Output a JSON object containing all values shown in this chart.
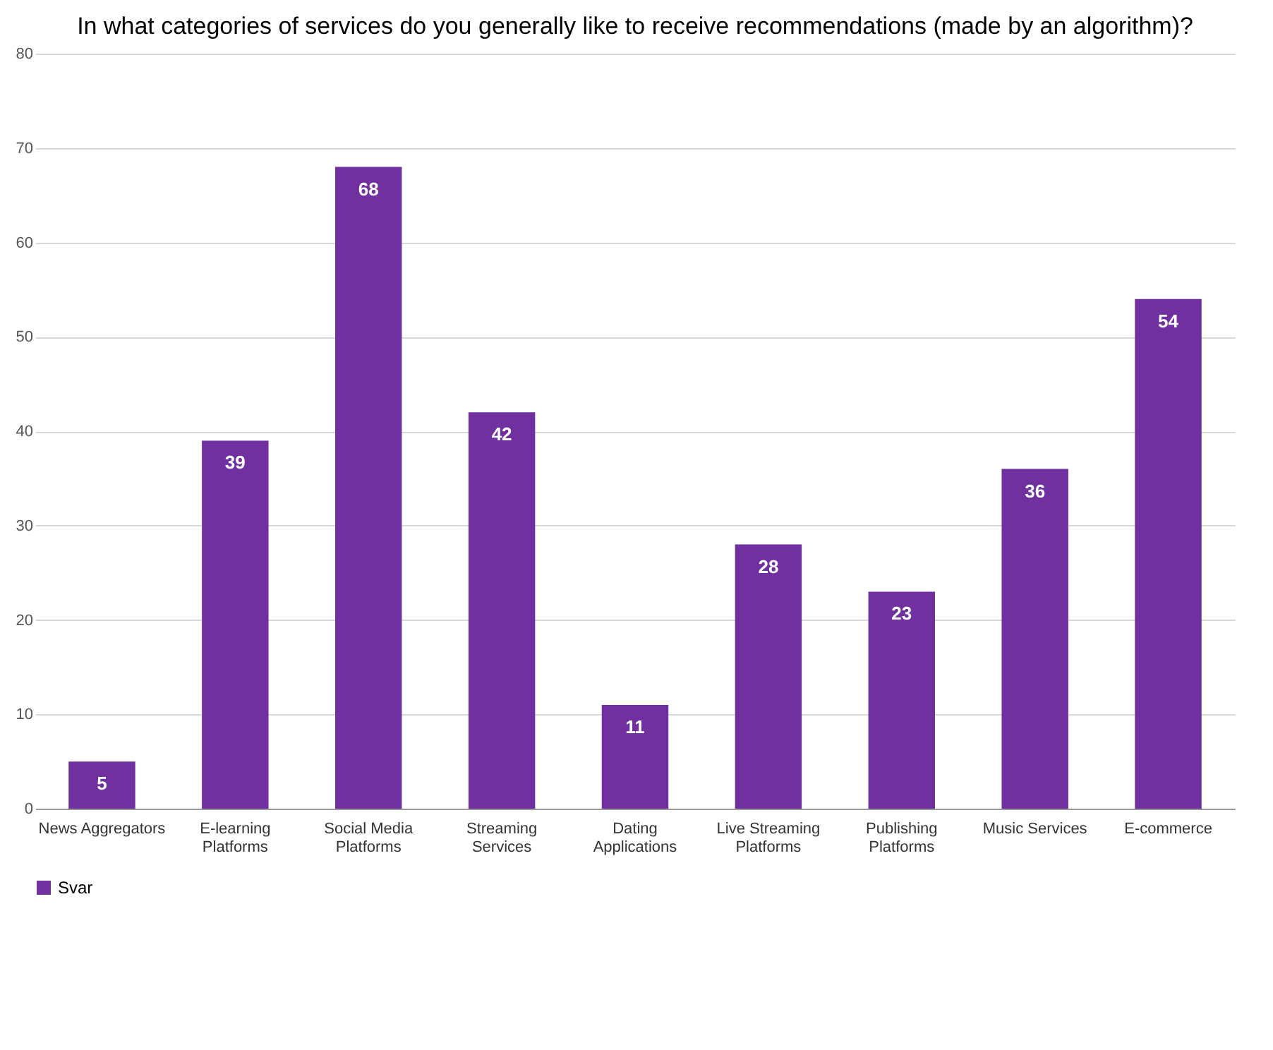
{
  "chart_data": {
    "type": "bar",
    "title": "In what categories of services do you generally like to receive recommendations (made by an algorithm)?",
    "categories": [
      "News Aggregators",
      "E-learning Platforms",
      "Social Media Platforms",
      "Streaming Services",
      "Dating Applications",
      "Live Streaming Platforms",
      "Publishing Platforms",
      "Music Services",
      "E-commerce"
    ],
    "series": [
      {
        "name": "Svar",
        "color": "#7030a0",
        "values": [
          5,
          39,
          68,
          42,
          11,
          28,
          23,
          36,
          54
        ]
      }
    ],
    "ylim": [
      0,
      80
    ],
    "yticks": [
      0,
      10,
      20,
      30,
      40,
      50,
      60,
      70,
      80
    ],
    "grid": "y",
    "legend": "bottom",
    "data_labels": true
  }
}
